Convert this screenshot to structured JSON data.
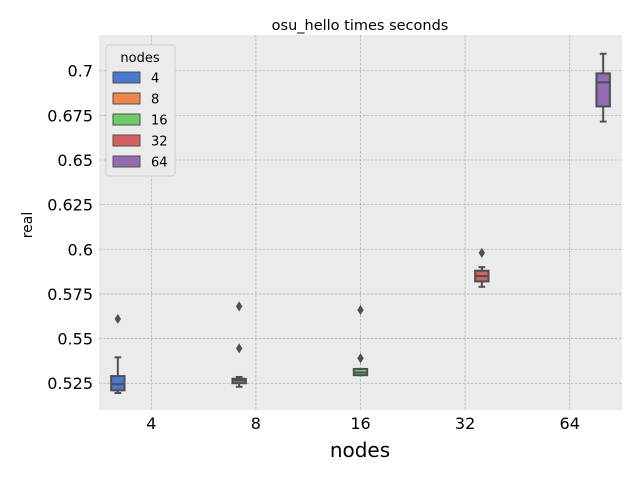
{
  "chart_data": {
    "type": "box",
    "title": "osu_hello times seconds",
    "xlabel": "nodes",
    "ylabel": "real",
    "categories": [
      "4",
      "8",
      "16",
      "32",
      "64"
    ],
    "ylim": [
      0.51,
      0.72
    ],
    "yticks": [
      0.525,
      0.55,
      0.575,
      0.6,
      0.625,
      0.65,
      0.675,
      0.7
    ],
    "ytick_labels": [
      "0.525",
      "0.55",
      "0.575",
      "0.6",
      "0.625",
      "0.65",
      "0.675",
      "0.7"
    ],
    "grid": true,
    "legend": {
      "title": "nodes",
      "position": "top-left",
      "entries": [
        "4",
        "8",
        "16",
        "32",
        "64"
      ]
    },
    "series": [
      {
        "name": "4",
        "color": "#4878d0",
        "category": "4",
        "whisker_low": 0.5195,
        "q1": 0.521,
        "median": 0.5245,
        "q3": 0.529,
        "whisker_high": 0.5395,
        "outliers": [
          0.561
        ]
      },
      {
        "name": "8",
        "color": "#ee854a",
        "category": "8",
        "whisker_low": 0.523,
        "q1": 0.525,
        "median": 0.5265,
        "q3": 0.5275,
        "whisker_high": 0.5285,
        "outliers": [
          0.5445,
          0.568
        ]
      },
      {
        "name": "16",
        "color": "#6acc64",
        "category": "16",
        "whisker_low": 0.5295,
        "q1": 0.5295,
        "median": 0.531,
        "q3": 0.533,
        "whisker_high": 0.533,
        "outliers": [
          0.539,
          0.566
        ]
      },
      {
        "name": "32",
        "color": "#d65f5f",
        "category": "32",
        "whisker_low": 0.579,
        "q1": 0.582,
        "median": 0.585,
        "q3": 0.588,
        "whisker_high": 0.59,
        "outliers": [
          0.598
        ]
      },
      {
        "name": "64",
        "color": "#956cb4",
        "category": "64",
        "whisker_low": 0.6715,
        "q1": 0.68,
        "median": 0.6935,
        "q3": 0.6985,
        "whisker_high": 0.7095,
        "outliers": []
      }
    ]
  },
  "style": {
    "axes_background": "#ebebeb",
    "grid_color": "#b0b0b0",
    "box_edge_color": "#4f4f4f"
  }
}
